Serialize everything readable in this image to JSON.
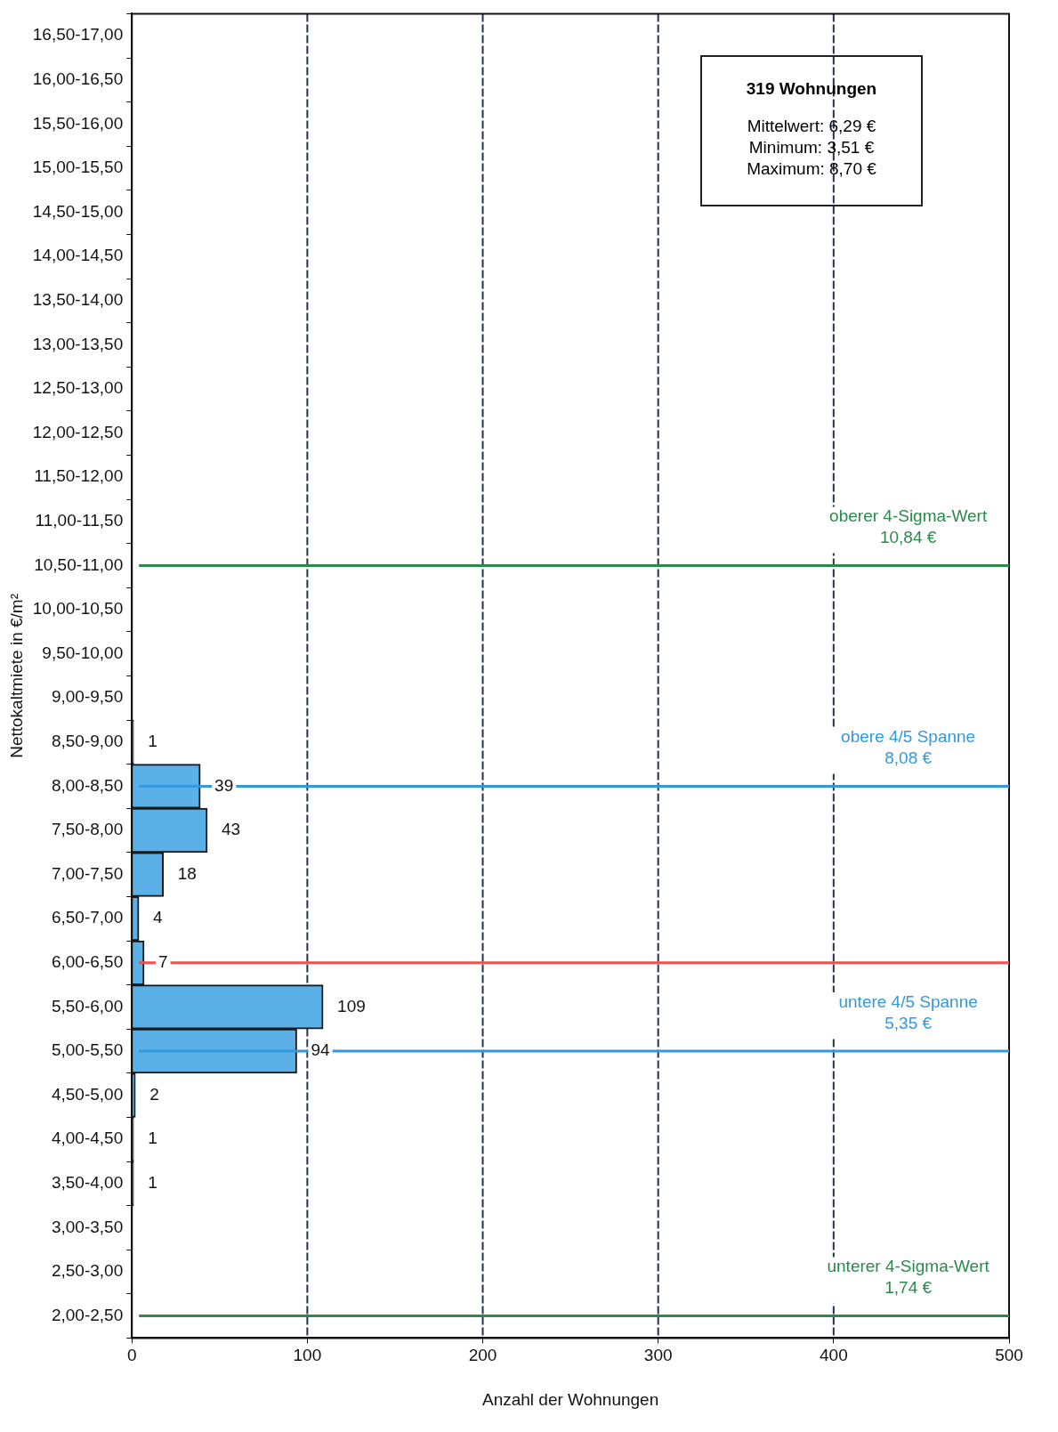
{
  "chart_data": {
    "type": "bar",
    "orientation": "horizontal",
    "xlabel": "Anzahl der Wohnungen",
    "ylabel": "Nettokaltmiete in €/m²",
    "categories": [
      "16,50-17,00",
      "16,00-16,50",
      "15,50-16,00",
      "15,00-15,50",
      "14,50-15,00",
      "14,00-14,50",
      "13,50-14,00",
      "13,00-13,50",
      "12,50-13,00",
      "12,00-12,50",
      "11,50-12,00",
      "11,00-11,50",
      "10,50-11,00",
      "10,00-10,50",
      "9,50-10,00",
      "9,00-9,50",
      "8,50-9,00",
      "8,00-8,50",
      "7,50-8,00",
      "7,00-7,50",
      "6,50-7,00",
      "6,00-6,50",
      "5,50-6,00",
      "5,00-5,50",
      "4,50-5,00",
      "4,00-4,50",
      "3,50-4,00",
      "3,00-3,50",
      "2,50-3,00",
      "2,00-2,50"
    ],
    "values": [
      0,
      0,
      0,
      0,
      0,
      0,
      0,
      0,
      0,
      0,
      0,
      0,
      0,
      0,
      0,
      0,
      1,
      39,
      43,
      18,
      4,
      7,
      109,
      94,
      2,
      1,
      1,
      0,
      0,
      0
    ],
    "value_labels": [
      null,
      null,
      null,
      null,
      null,
      null,
      null,
      null,
      null,
      null,
      null,
      null,
      null,
      null,
      null,
      null,
      "1",
      "39",
      "43",
      "18",
      "4",
      "7",
      "109",
      "94",
      "2",
      "1",
      "1",
      null,
      null,
      null
    ],
    "color": "#5bb0e8",
    "xlim": [
      0,
      500
    ],
    "xticks": [
      0,
      100,
      200,
      300,
      400,
      500
    ],
    "grid": "x",
    "ref_lines": [
      {
        "axis": "y",
        "value": "10,50-11,00",
        "label": "oberer 4-Sigma-Wert\n10,84 €",
        "color": "#2a8a4a"
      },
      {
        "axis": "y",
        "value": "8,00-8,50",
        "label": "obere 4/5 Spanne\n8,08 €",
        "color": "#3399dd"
      },
      {
        "axis": "y",
        "value": "6,00-6,50",
        "color": "#f05050"
      },
      {
        "axis": "y",
        "value": "5,00-5,50",
        "label": "untere 4/5 Spanne\n5,35 €",
        "color": "#3399dd"
      },
      {
        "axis": "y",
        "value": "2,00-2,50",
        "label": "unterer 4-Sigma-Wert\n1,74 €",
        "color": "#2a8a4a"
      }
    ],
    "annotations": [
      "319 Wohnungen",
      "Mittelwert: 6,29 €",
      "Minimum: 3,51 €",
      "Maximum: 8,70 €"
    ]
  }
}
